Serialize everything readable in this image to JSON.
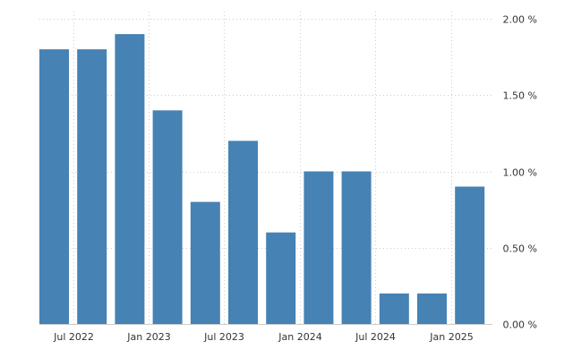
{
  "chart_data": {
    "type": "bar",
    "title": "",
    "xlabel": "",
    "ylabel": "",
    "categories": [
      "2022-Q2",
      "2022-Q3",
      "2022-Q4",
      "2023-Q1",
      "2023-Q2",
      "2023-Q3",
      "2023-Q4",
      "2024-Q1",
      "2024-Q2",
      "2024-Q3",
      "2024-Q4",
      "2025-Q1"
    ],
    "values": [
      1.8,
      1.8,
      1.9,
      1.4,
      0.8,
      1.2,
      0.6,
      1.0,
      1.0,
      0.2,
      0.2,
      0.9
    ],
    "ylim": [
      0,
      2.0
    ],
    "yticks": [
      {
        "value": 0.0,
        "label": "0.00 %"
      },
      {
        "value": 0.5,
        "label": "0.50 %"
      },
      {
        "value": 1.0,
        "label": "1.00 %"
      },
      {
        "value": 1.5,
        "label": "1.50 %"
      },
      {
        "value": 2.0,
        "label": "2.00 %"
      }
    ],
    "xticks": [
      {
        "between": [
          0,
          1
        ],
        "label": "Jul 2022"
      },
      {
        "between": [
          2,
          3
        ],
        "label": "Jan 2023"
      },
      {
        "between": [
          4,
          5
        ],
        "label": "Jul 2023"
      },
      {
        "between": [
          6,
          7
        ],
        "label": "Jan 2024"
      },
      {
        "between": [
          8,
          9
        ],
        "label": "Jul 2024"
      },
      {
        "between": [
          10,
          11
        ],
        "label": "Jan 2025"
      }
    ],
    "grid": true,
    "y_axis_side": "right",
    "bar_color": "#4682b4"
  }
}
